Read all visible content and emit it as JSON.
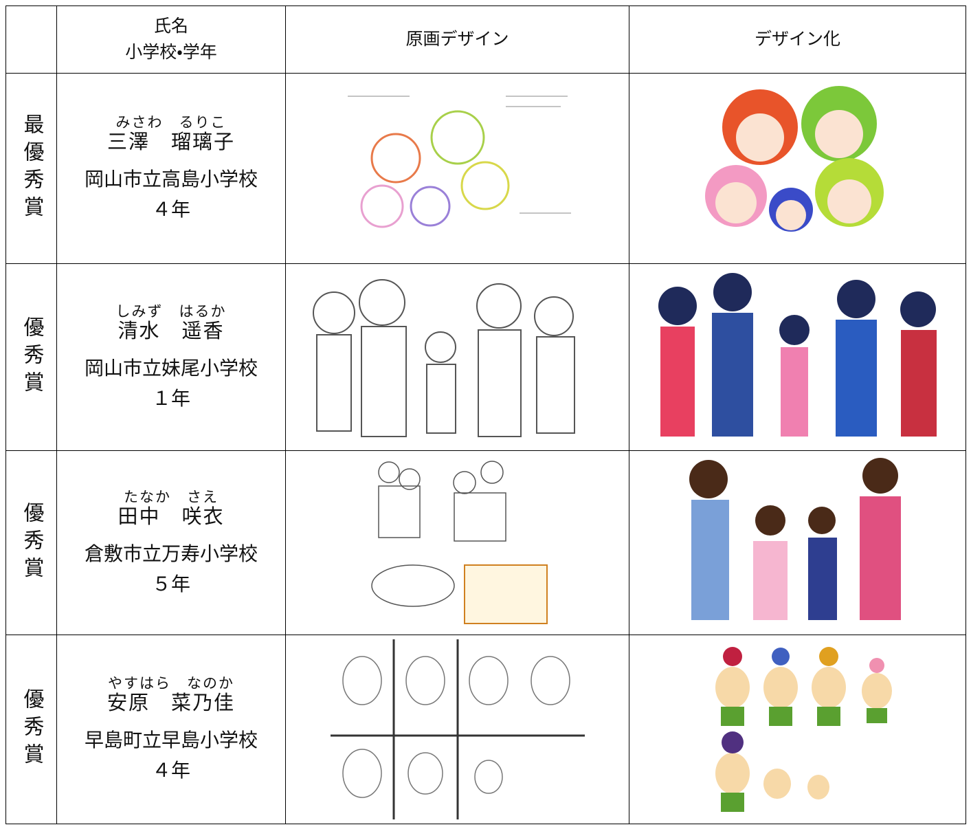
{
  "table": {
    "header": {
      "name_line1": "氏名",
      "name_line2": "小学校・学年",
      "original": "原画デザイン",
      "design": "デザイン化"
    },
    "rows": [
      {
        "award": "最優秀賞",
        "reading": "みさわ　るりこ",
        "name": "三澤　瑠璃子",
        "school": "岡山市立高島小学校",
        "grade": "４年"
      },
      {
        "award": "優秀賞",
        "reading": "しみず　はるか",
        "name": "清水　遥香",
        "school": "岡山市立妹尾小学校",
        "grade": "１年"
      },
      {
        "award": "優秀賞",
        "reading": "たなか　さえ",
        "name": "田中　咲衣",
        "school": "倉敷市立万寿小学校",
        "grade": "５年"
      },
      {
        "award": "優秀賞",
        "reading": "やすはら　なのか",
        "name": "安原　菜乃佳",
        "school": "早島町立早島小学校",
        "grade": "４年"
      }
    ]
  }
}
